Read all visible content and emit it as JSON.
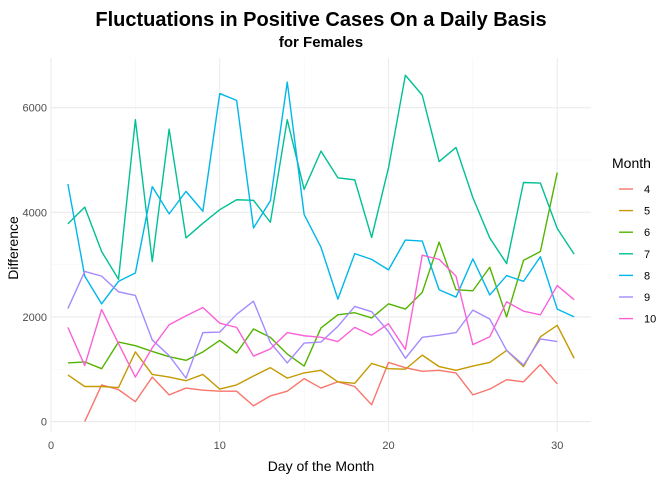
{
  "chart_data": {
    "type": "line",
    "title": "Fluctuations in Positive Cases On a Daily Basis",
    "subtitle": "for Females",
    "xlabel": "Day of the Month",
    "ylabel": "Difference",
    "xlim": [
      0,
      32
    ],
    "ylim": [
      -200,
      6950
    ],
    "x_ticks": [
      0,
      10,
      20,
      30
    ],
    "y_ticks": [
      0,
      2000,
      4000,
      6000
    ],
    "x_tick_labels": [
      "0",
      "10",
      "20",
      "30"
    ],
    "y_tick_labels": [
      "0",
      "2000",
      "4000",
      "6000"
    ],
    "grid": true,
    "legend": {
      "title": "Month",
      "position": "right"
    },
    "series": [
      {
        "name": "4",
        "color": "#F8766D",
        "x": [
          2,
          3,
          4,
          5,
          6,
          7,
          8,
          9,
          10,
          11,
          12,
          13,
          14,
          15,
          16,
          17,
          18,
          19,
          20,
          21,
          22,
          23,
          24,
          25,
          26,
          27,
          28,
          29,
          30
        ],
        "values": [
          0,
          700,
          610,
          380,
          850,
          510,
          640,
          600,
          580,
          580,
          300,
          490,
          580,
          820,
          640,
          760,
          670,
          320,
          1130,
          1030,
          960,
          980,
          930,
          510,
          620,
          800,
          760,
          1090,
          720
        ]
      },
      {
        "name": "5",
        "color": "#C49A00",
        "x": [
          1,
          2,
          3,
          4,
          5,
          6,
          7,
          8,
          9,
          10,
          11,
          12,
          13,
          14,
          15,
          16,
          17,
          18,
          19,
          20,
          21,
          22,
          23,
          24,
          25,
          26,
          27,
          28,
          29,
          30,
          31
        ],
        "values": [
          890,
          670,
          670,
          650,
          1330,
          900,
          850,
          780,
          900,
          620,
          700,
          870,
          1030,
          830,
          930,
          980,
          760,
          730,
          1110,
          1010,
          1000,
          1270,
          1050,
          980,
          1060,
          1130,
          1360,
          1050,
          1620,
          1840,
          1210
        ]
      },
      {
        "name": "6",
        "color": "#53B400",
        "x": [
          1,
          2,
          3,
          4,
          5,
          6,
          7,
          8,
          9,
          10,
          11,
          12,
          13,
          14,
          15,
          16,
          17,
          18,
          19,
          20,
          21,
          22,
          23,
          24,
          25,
          26,
          27,
          28,
          29,
          30
        ],
        "values": [
          1120,
          1140,
          1010,
          1520,
          1450,
          1340,
          1240,
          1170,
          1330,
          1550,
          1310,
          1770,
          1610,
          1290,
          1060,
          1790,
          2040,
          2080,
          1980,
          2250,
          2150,
          2470,
          3430,
          2520,
          2500,
          2950,
          2000,
          3080,
          3250,
          4760
        ]
      },
      {
        "name": "7",
        "color": "#00C094",
        "x": [
          1,
          2,
          3,
          4,
          5,
          6,
          7,
          8,
          9,
          10,
          11,
          12,
          13,
          14,
          15,
          16,
          17,
          18,
          19,
          20,
          21,
          22,
          23,
          24,
          25,
          26,
          27,
          28,
          29,
          30,
          31
        ],
        "values": [
          3780,
          4100,
          3250,
          2720,
          5770,
          3060,
          5590,
          3510,
          3790,
          4050,
          4240,
          4230,
          3810,
          5770,
          4440,
          5170,
          4660,
          4620,
          3520,
          4850,
          6620,
          6240,
          4970,
          5240,
          4280,
          3510,
          3020,
          4570,
          4560,
          3690,
          3200
        ]
      },
      {
        "name": "8",
        "color": "#00B6EB",
        "x": [
          1,
          2,
          3,
          4,
          5,
          6,
          7,
          8,
          9,
          10,
          11,
          12,
          13,
          14,
          15,
          16,
          17,
          18,
          19,
          20,
          21,
          22,
          23,
          24,
          25,
          26,
          27,
          28,
          29,
          30,
          31
        ],
        "values": [
          4540,
          2780,
          2250,
          2680,
          2840,
          4490,
          3970,
          4400,
          4020,
          6270,
          6140,
          3700,
          4220,
          6490,
          3960,
          3330,
          2340,
          3210,
          3100,
          2900,
          3470,
          3450,
          2520,
          2380,
          3110,
          2420,
          2790,
          2680,
          3150,
          2150,
          2000
        ]
      },
      {
        "name": "9",
        "color": "#A58AFF",
        "x": [
          1,
          2,
          3,
          4,
          5,
          6,
          7,
          8,
          9,
          10,
          11,
          12,
          13,
          14,
          15,
          16,
          17,
          18,
          19,
          20,
          21,
          22,
          23,
          24,
          25,
          26,
          27,
          28,
          29,
          30
        ],
        "values": [
          2160,
          2870,
          2780,
          2480,
          2410,
          1560,
          1260,
          830,
          1700,
          1710,
          2050,
          2300,
          1510,
          1120,
          1500,
          1520,
          1820,
          2200,
          2100,
          1720,
          1210,
          1610,
          1650,
          1700,
          2130,
          1960,
          1360,
          1080,
          1580,
          1530
        ]
      },
      {
        "name": "10",
        "color": "#FB61D7",
        "x": [
          1,
          2,
          3,
          4,
          5,
          6,
          7,
          8,
          9,
          10,
          11,
          12,
          13,
          14,
          15,
          16,
          17,
          18,
          19,
          20,
          21,
          22,
          23,
          24,
          25,
          26,
          27,
          28,
          29,
          30,
          31
        ],
        "values": [
          1800,
          1070,
          2140,
          1490,
          850,
          1410,
          1850,
          2020,
          2180,
          1880,
          1800,
          1250,
          1390,
          1700,
          1640,
          1610,
          1530,
          1800,
          1650,
          1870,
          1380,
          3180,
          3100,
          2780,
          1470,
          1620,
          2290,
          2110,
          2040,
          2600,
          2330
        ]
      }
    ]
  }
}
